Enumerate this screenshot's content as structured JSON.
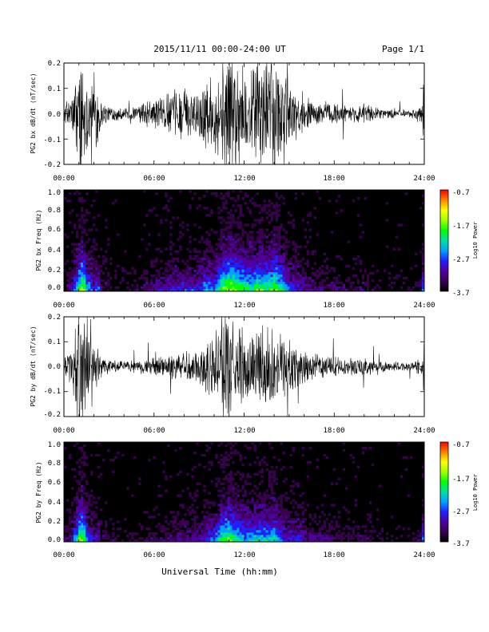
{
  "header": {
    "date_range": "2015/11/11   00:00-24:00 UT",
    "page": "Page 1/1"
  },
  "footer": {
    "xlabel": "Universal Time (hh:mm)"
  },
  "colors": {
    "trace": "#000000",
    "spectrogram_background": "#000000",
    "colormap": [
      "#000000",
      "#3a0050",
      "#5000a0",
      "#2020ff",
      "#00a0ff",
      "#00e0a0",
      "#00ff00",
      "#a0ff00",
      "#ffff00",
      "#ff8000",
      "#ff0000"
    ]
  },
  "chart_data": [
    {
      "type": "line",
      "ylabel": "PG2 bx dB/dt (nT/sec)",
      "xticks": [
        "00:00",
        "06:00",
        "12:00",
        "18:00",
        "24:00"
      ],
      "xlim": [
        0,
        24
      ],
      "ylim": [
        -0.2,
        0.2
      ],
      "yticks": [
        "0.2",
        "0.1",
        "0.0",
        "-0.1",
        "-0.2"
      ],
      "envelope": {
        "x": [
          0,
          0.5,
          1,
          1.25,
          1.5,
          2,
          2.25,
          2.5,
          3,
          4,
          5,
          5.5,
          6,
          7,
          8,
          9,
          9.5,
          10,
          10.5,
          11,
          11.5,
          12,
          12.5,
          13,
          13.5,
          14,
          14.5,
          15,
          15.5,
          16,
          17,
          18,
          19,
          20,
          21,
          22,
          23,
          23.8,
          24
        ],
        "amplitude": [
          0.03,
          0.06,
          0.2,
          0.25,
          0.15,
          0.1,
          0.14,
          0.05,
          0.03,
          0.02,
          0.03,
          0.05,
          0.06,
          0.08,
          0.09,
          0.1,
          0.15,
          0.12,
          0.2,
          0.25,
          0.22,
          0.2,
          0.18,
          0.21,
          0.2,
          0.23,
          0.18,
          0.12,
          0.1,
          0.07,
          0.05,
          0.04,
          0.03,
          0.04,
          0.02,
          0.02,
          0.015,
          0.03,
          0.2
        ]
      }
    },
    {
      "type": "heatmap",
      "ylabel": "PG2 bx Freq (Hz)",
      "xticks": [
        "00:00",
        "06:00",
        "12:00",
        "18:00",
        "24:00"
      ],
      "xlim": [
        0,
        24
      ],
      "ylim": [
        0,
        1.0
      ],
      "yticks": [
        "1.0",
        "0.8",
        "0.6",
        "0.4",
        "0.2",
        "0.0"
      ],
      "colorbar": {
        "label": "Log10 Power",
        "ticks": [
          "-0.7",
          "-1.7",
          "-2.7",
          "-3.7"
        ],
        "range": [
          -3.7,
          -0.7
        ]
      }
    },
    {
      "type": "line",
      "ylabel": "PG2 by dB/dt (nT/sec)",
      "xticks": [
        "00:00",
        "06:00",
        "12:00",
        "18:00",
        "24:00"
      ],
      "xlim": [
        0,
        24
      ],
      "ylim": [
        -0.2,
        0.2
      ],
      "yticks": [
        "0.2",
        "0.1",
        "0.0",
        "-0.1",
        "-0.2"
      ],
      "envelope": {
        "x": [
          0,
          0.5,
          1,
          1.25,
          1.5,
          2,
          2.25,
          2.5,
          3,
          4,
          5,
          5.5,
          6,
          7,
          8,
          9,
          9.5,
          10,
          10.5,
          11,
          11.5,
          12,
          12.5,
          13,
          13.5,
          14,
          14.5,
          15,
          15.5,
          16,
          17,
          18,
          19,
          20,
          21,
          22,
          23,
          23.8,
          24
        ],
        "amplitude": [
          0.03,
          0.07,
          0.2,
          0.25,
          0.14,
          0.08,
          0.09,
          0.04,
          0.03,
          0.02,
          0.025,
          0.03,
          0.035,
          0.05,
          0.06,
          0.07,
          0.1,
          0.12,
          0.2,
          0.22,
          0.18,
          0.15,
          0.15,
          0.17,
          0.16,
          0.17,
          0.12,
          0.1,
          0.09,
          0.07,
          0.05,
          0.04,
          0.03,
          0.04,
          0.02,
          0.02,
          0.015,
          0.03,
          0.2
        ]
      }
    },
    {
      "type": "heatmap",
      "ylabel": "PG2 by Freq (Hz)",
      "xticks": [
        "00:00",
        "06:00",
        "12:00",
        "18:00",
        "24:00"
      ],
      "xlim": [
        0,
        24
      ],
      "ylim": [
        0,
        1.0
      ],
      "yticks": [
        "1.0",
        "0.8",
        "0.6",
        "0.4",
        "0.2",
        "0.0"
      ],
      "colorbar": {
        "label": "Log10 Power",
        "ticks": [
          "-0.7",
          "-1.7",
          "-2.7",
          "-3.7"
        ],
        "range": [
          -3.7,
          -0.7
        ]
      }
    }
  ]
}
